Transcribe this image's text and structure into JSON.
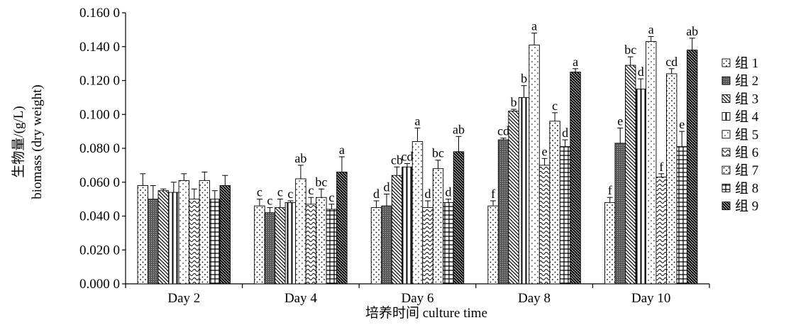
{
  "chart_data": {
    "type": "bar",
    "ylabel_cn": "生物量/(g/L)",
    "ylabel_en": "biomass (dry weight)",
    "xlabel": "培养时间  culture time",
    "ylim": [
      0,
      0.16
    ],
    "yticks": [
      "0.000 0",
      "0.020 0",
      "0.040 0",
      "0.060 0",
      "0.080 0",
      "0.100 0",
      "0.120 0",
      "0.140 0",
      "0.160 0"
    ],
    "categories": [
      "Day 2",
      "Day 4",
      "Day 6",
      "Day 8",
      "Day 10"
    ],
    "legend_position": "right",
    "series": [
      {
        "name": "组 1",
        "pattern": "dots",
        "values": [
          0.058,
          0.046,
          0.045,
          0.046,
          0.048
        ],
        "errors": [
          0.007,
          0.004,
          0.004,
          0.003,
          0.003
        ],
        "labels": [
          "",
          "c",
          "d",
          "f",
          "f"
        ]
      },
      {
        "name": "组 2",
        "pattern": "dense",
        "values": [
          0.05,
          0.042,
          0.046,
          0.085,
          0.083
        ],
        "errors": [
          0.008,
          0.003,
          0.007,
          0.001,
          0.009
        ],
        "labels": [
          "",
          "c",
          "d",
          "cd",
          "e"
        ]
      },
      {
        "name": "组 3",
        "pattern": "diag",
        "values": [
          0.055,
          0.045,
          0.064,
          0.102,
          0.129
        ],
        "errors": [
          0.001,
          0.005,
          0.005,
          0.001,
          0.005
        ],
        "labels": [
          "",
          "c",
          "cb",
          "b",
          "bc"
        ]
      },
      {
        "name": "组 4",
        "pattern": "vert",
        "values": [
          0.054,
          0.048,
          0.069,
          0.11,
          0.115
        ],
        "errors": [
          0.006,
          0.001,
          0.002,
          0.007,
          0.006
        ],
        "labels": [
          "",
          "c",
          "cd",
          "b",
          "d"
        ]
      },
      {
        "name": "组 5",
        "pattern": "sparsedot",
        "values": [
          0.061,
          0.062,
          0.084,
          0.141,
          0.143
        ],
        "errors": [
          0.004,
          0.008,
          0.008,
          0.007,
          0.003
        ],
        "labels": [
          "",
          "ab",
          "a",
          "a",
          "a"
        ]
      },
      {
        "name": "组 6",
        "pattern": "wave",
        "values": [
          0.05,
          0.047,
          0.045,
          0.07,
          0.063
        ],
        "errors": [
          0.006,
          0.004,
          0.004,
          0.004,
          0.002
        ],
        "labels": [
          "",
          "c",
          "d",
          "e",
          "f"
        ]
      },
      {
        "name": "组 7",
        "pattern": "dots",
        "values": [
          0.061,
          0.051,
          0.068,
          0.096,
          0.124
        ],
        "errors": [
          0.005,
          0.005,
          0.005,
          0.005,
          0.003
        ],
        "labels": [
          "",
          "bc",
          "bc",
          "c",
          "cd"
        ]
      },
      {
        "name": "组 8",
        "pattern": "grid",
        "values": [
          0.05,
          0.044,
          0.048,
          0.081,
          0.081
        ],
        "errors": [
          0.005,
          0.003,
          0.002,
          0.004,
          0.009
        ],
        "labels": [
          "",
          "c",
          "d",
          "d",
          "e"
        ]
      },
      {
        "name": "组 9",
        "pattern": "check",
        "values": [
          0.058,
          0.066,
          0.078,
          0.125,
          0.138
        ],
        "errors": [
          0.006,
          0.009,
          0.009,
          0.002,
          0.007
        ],
        "labels": [
          "",
          "a",
          "ab",
          "a",
          "ab"
        ]
      }
    ]
  }
}
